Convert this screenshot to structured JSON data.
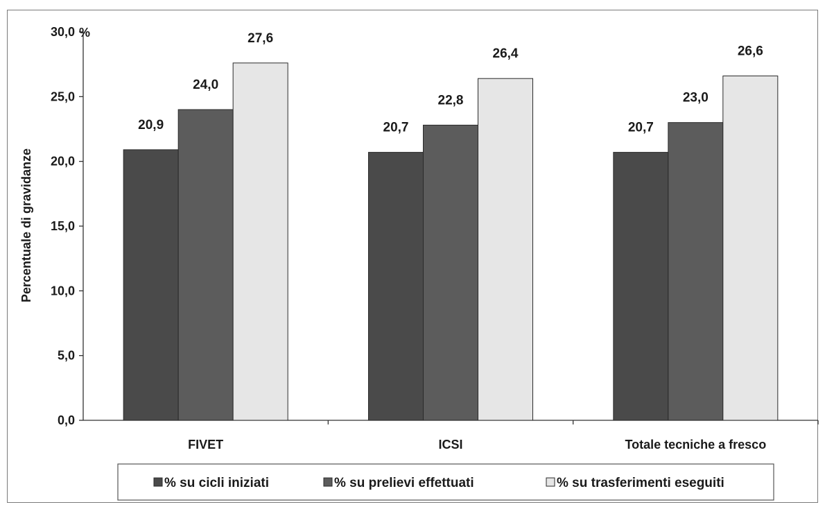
{
  "chart_data": {
    "type": "bar",
    "categories": [
      "FIVET",
      "ICSI",
      "Totale tecniche a fresco"
    ],
    "series": [
      {
        "name": "% su cicli iniziati",
        "values": [
          20.9,
          20.7,
          20.7
        ],
        "color": "#4a4a4a",
        "labels": [
          "20,9",
          "20,7",
          "20,7"
        ]
      },
      {
        "name": "% su prelievi effettuati",
        "values": [
          24.0,
          22.8,
          23.0
        ],
        "color": "#5c5c5c",
        "labels": [
          "24,0",
          "22,8",
          "23,0"
        ]
      },
      {
        "name": "% su trasferimenti eseguiti",
        "values": [
          27.6,
          26.4,
          26.6
        ],
        "color": "#e6e6e6",
        "labels": [
          "27,6",
          "26,4",
          "26,6"
        ]
      }
    ],
    "ylabel": "Percentuale di gravidanze",
    "yunit": "%",
    "ylim": [
      0,
      30
    ],
    "yticks": [
      {
        "value": 0,
        "label": "0,0"
      },
      {
        "value": 5,
        "label": "5,0"
      },
      {
        "value": 10,
        "label": "10,0"
      },
      {
        "value": 15,
        "label": "15,0"
      },
      {
        "value": 20,
        "label": "20,0"
      },
      {
        "value": 25,
        "label": "25,0"
      },
      {
        "value": 30,
        "label": "30,0"
      }
    ],
    "grid": false,
    "legend_position": "bottom"
  }
}
